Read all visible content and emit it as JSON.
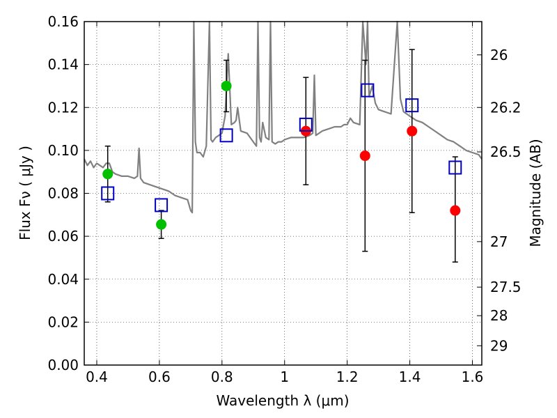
{
  "chart_data": {
    "type": "scatter",
    "title": "",
    "xlabel": "Wavelength  λ (μm)",
    "ylabel": "Flux  Fν  ( μJy )",
    "ylabel_right": "Magnitude (AB)",
    "xlim": [
      0.36,
      1.63
    ],
    "ylim": [
      0,
      0.16
    ],
    "grid": true,
    "x_ticks": [
      {
        "value": 0.4,
        "label": "0.4"
      },
      {
        "value": 0.6,
        "label": "0.6"
      },
      {
        "value": 0.8,
        "label": "0.8"
      },
      {
        "value": 1.0,
        "label": "1"
      },
      {
        "value": 1.2,
        "label": "1.2"
      },
      {
        "value": 1.4,
        "label": "1.4"
      },
      {
        "value": 1.6,
        "label": "1.6"
      }
    ],
    "y_ticks": [
      {
        "value": 0.0,
        "label": "0.00"
      },
      {
        "value": 0.02,
        "label": "0.02"
      },
      {
        "value": 0.04,
        "label": "0.04"
      },
      {
        "value": 0.06,
        "label": "0.06"
      },
      {
        "value": 0.08,
        "label": "0.08"
      },
      {
        "value": 0.1,
        "label": "0.10"
      },
      {
        "value": 0.12,
        "label": "0.12"
      },
      {
        "value": 0.14,
        "label": "0.14"
      },
      {
        "value": 0.16,
        "label": "0.16"
      }
    ],
    "right_ticks": [
      {
        "flux": 0.1445,
        "label": "26"
      },
      {
        "flux": 0.12,
        "label": "26.2"
      },
      {
        "flux": 0.0993,
        "label": "26.5"
      },
      {
        "flux": 0.0575,
        "label": "27"
      },
      {
        "flux": 0.0363,
        "label": "27.5"
      },
      {
        "flux": 0.023,
        "label": "28"
      },
      {
        "flux": 0.009,
        "label": "29"
      }
    ],
    "series": [
      {
        "kind": "line",
        "color": "#808080",
        "x": [
          0.36,
          0.37,
          0.38,
          0.39,
          0.4,
          0.41,
          0.42,
          0.43,
          0.44,
          0.45,
          0.46,
          0.48,
          0.5,
          0.52,
          0.53,
          0.535,
          0.54,
          0.55,
          0.57,
          0.59,
          0.61,
          0.63,
          0.65,
          0.67,
          0.69,
          0.7,
          0.705,
          0.71,
          0.715,
          0.72,
          0.73,
          0.74,
          0.75,
          0.76,
          0.765,
          0.77,
          0.78,
          0.79,
          0.8,
          0.81,
          0.82,
          0.83,
          0.84,
          0.845,
          0.85,
          0.86,
          0.88,
          0.9,
          0.91,
          0.915,
          0.92,
          0.925,
          0.93,
          0.94,
          0.95,
          0.955,
          0.96,
          0.97,
          0.98,
          0.99,
          1.0,
          1.02,
          1.04,
          1.06,
          1.08,
          1.09,
          1.095,
          1.1,
          1.12,
          1.14,
          1.16,
          1.18,
          1.19,
          1.2,
          1.21,
          1.22,
          1.24,
          1.25,
          1.26,
          1.265,
          1.27,
          1.28,
          1.29,
          1.3,
          1.32,
          1.34,
          1.36,
          1.37,
          1.38,
          1.4,
          1.42,
          1.44,
          1.46,
          1.48,
          1.5,
          1.52,
          1.54,
          1.56,
          1.58,
          1.6,
          1.62,
          1.63
        ],
        "y": [
          0.096,
          0.093,
          0.095,
          0.092,
          0.094,
          0.093,
          0.092,
          0.094,
          0.094,
          0.09,
          0.089,
          0.088,
          0.088,
          0.087,
          0.088,
          0.101,
          0.087,
          0.085,
          0.084,
          0.083,
          0.082,
          0.081,
          0.079,
          0.078,
          0.077,
          0.072,
          0.071,
          0.16,
          0.104,
          0.099,
          0.099,
          0.097,
          0.102,
          0.16,
          0.105,
          0.104,
          0.106,
          0.107,
          0.108,
          0.116,
          0.145,
          0.112,
          0.113,
          0.114,
          0.12,
          0.109,
          0.108,
          0.104,
          0.102,
          0.16,
          0.106,
          0.104,
          0.113,
          0.106,
          0.105,
          0.16,
          0.104,
          0.103,
          0.104,
          0.104,
          0.105,
          0.106,
          0.106,
          0.106,
          0.107,
          0.108,
          0.135,
          0.107,
          0.109,
          0.11,
          0.111,
          0.111,
          0.112,
          0.112,
          0.115,
          0.113,
          0.112,
          0.16,
          0.14,
          0.16,
          0.125,
          0.13,
          0.122,
          0.119,
          0.118,
          0.117,
          0.16,
          0.124,
          0.118,
          0.116,
          0.114,
          0.113,
          0.111,
          0.109,
          0.107,
          0.105,
          0.104,
          0.102,
          0.1,
          0.099,
          0.098,
          0.096
        ]
      },
      {
        "kind": "markers",
        "marker": "circle",
        "color": "#00c000",
        "points": [
          {
            "x": 0.435,
            "y": 0.089,
            "err": [
              0.076,
              0.102
            ]
          },
          {
            "x": 0.606,
            "y": 0.0655,
            "err": [
              0.059,
              0.072
            ]
          },
          {
            "x": 0.814,
            "y": 0.13,
            "err": [
              0.118,
              0.142
            ]
          }
        ]
      },
      {
        "kind": "markers",
        "marker": "circle",
        "color": "#ff0000",
        "points": [
          {
            "x": 1.068,
            "y": 0.109,
            "err": [
              0.084,
              0.134
            ]
          },
          {
            "x": 1.257,
            "y": 0.0975,
            "err": [
              0.053,
              0.142
            ]
          },
          {
            "x": 1.407,
            "y": 0.109,
            "err": [
              0.071,
              0.147
            ]
          },
          {
            "x": 1.545,
            "y": 0.072,
            "err": [
              0.048,
              0.097
            ]
          }
        ]
      },
      {
        "kind": "markers",
        "marker": "square",
        "color": "#0000c0",
        "points": [
          {
            "x": 0.435,
            "y": 0.08
          },
          {
            "x": 0.606,
            "y": 0.0745
          },
          {
            "x": 0.814,
            "y": 0.107
          },
          {
            "x": 1.068,
            "y": 0.112
          },
          {
            "x": 1.265,
            "y": 0.128
          },
          {
            "x": 1.407,
            "y": 0.121
          },
          {
            "x": 1.545,
            "y": 0.092
          }
        ]
      }
    ]
  }
}
